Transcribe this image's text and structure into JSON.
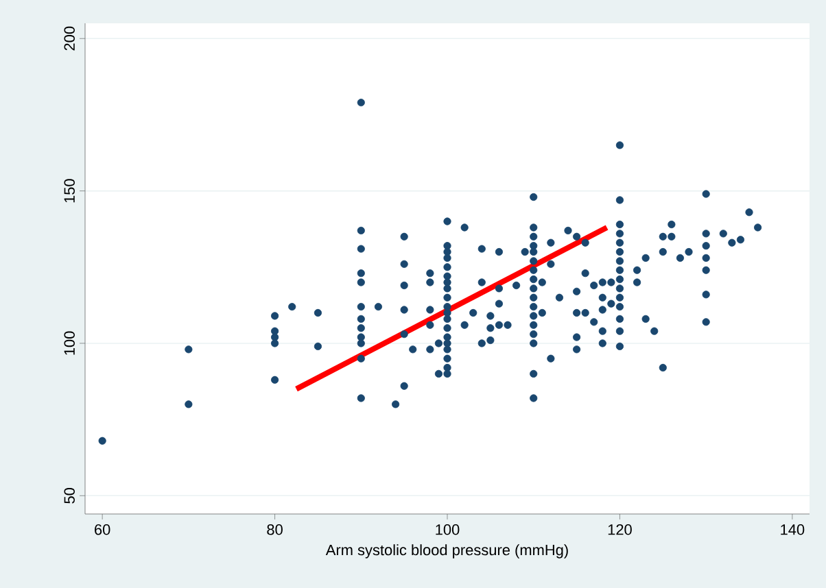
{
  "chart_data": {
    "type": "scatter",
    "xlabel": "Arm systolic blood pressure (mmHg)",
    "xlim": [
      58,
      142
    ],
    "ylim": [
      44,
      205
    ],
    "xticks": [
      60,
      80,
      100,
      120,
      140
    ],
    "yticks": [
      50,
      100,
      150,
      200
    ],
    "grid": "y",
    "series": [
      {
        "marker": "circle",
        "color": "#1a476f",
        "x": [
          60,
          70,
          70,
          80,
          80,
          80,
          80,
          80,
          82,
          85,
          85,
          90,
          90,
          90,
          90,
          90,
          90,
          90,
          90,
          90,
          90,
          90,
          90,
          92,
          95,
          95,
          95,
          95,
          95,
          95,
          94,
          96,
          98,
          98,
          98,
          98,
          98,
          100,
          100,
          100,
          100,
          100,
          100,
          100,
          100,
          100,
          100,
          100,
          100,
          100,
          100,
          100,
          100,
          100,
          100,
          100,
          99,
          99,
          102,
          102,
          103,
          104,
          104,
          104,
          105,
          105,
          105,
          106,
          106,
          106,
          106,
          107,
          108,
          110,
          110,
          110,
          110,
          110,
          110,
          110,
          110,
          110,
          110,
          110,
          110,
          110,
          110,
          110,
          110,
          110,
          109,
          111,
          111,
          112,
          112,
          112,
          113,
          114,
          115,
          116,
          116,
          115,
          115,
          115,
          115,
          116,
          117,
          117,
          118,
          118,
          118,
          118,
          118,
          119,
          119,
          120,
          120,
          120,
          120,
          120,
          120,
          120,
          120,
          120,
          120,
          120,
          120,
          120,
          120,
          120,
          122,
          122,
          123,
          123,
          124,
          125,
          125,
          125,
          126,
          126,
          127,
          128,
          130,
          130,
          130,
          130,
          130,
          130,
          130,
          132,
          133,
          134,
          135,
          136
        ],
        "values": [
          68,
          98,
          80,
          109,
          104,
          102,
          100,
          88,
          112,
          110,
          99,
          179,
          137,
          131,
          123,
          120,
          112,
          108,
          105,
          102,
          100,
          95,
          82,
          112,
          135,
          126,
          119,
          111,
          103,
          86,
          80,
          98,
          123,
          120,
          111,
          106,
          98,
          140,
          132,
          130,
          128,
          125,
          122,
          120,
          118,
          115,
          112,
          110,
          108,
          105,
          102,
          100,
          98,
          95,
          92,
          90,
          100,
          90,
          138,
          106,
          110,
          131,
          120,
          100,
          109,
          105,
          101,
          130,
          118,
          113,
          106,
          106,
          119,
          148,
          138,
          135,
          132,
          130,
          127,
          124,
          121,
          118,
          115,
          112,
          109,
          106,
          103,
          100,
          90,
          82,
          130,
          120,
          110,
          133,
          126,
          95,
          115,
          137,
          135,
          133,
          123,
          117,
          110,
          102,
          98,
          110,
          119,
          107,
          120,
          115,
          111,
          104,
          100,
          120,
          113,
          165,
          147,
          139,
          136,
          133,
          130,
          127,
          124,
          121,
          118,
          115,
          112,
          108,
          104,
          99,
          124,
          120,
          128,
          108,
          104,
          130,
          92,
          135,
          139,
          135,
          128,
          130,
          149,
          136,
          132,
          128,
          124,
          116,
          107,
          136,
          133,
          134,
          143,
          138
        ]
      },
      {
        "type": "line",
        "marker": "none",
        "color": "#ff0000",
        "x": [
          82.5,
          118.5
        ],
        "values": [
          85,
          138
        ]
      }
    ]
  }
}
